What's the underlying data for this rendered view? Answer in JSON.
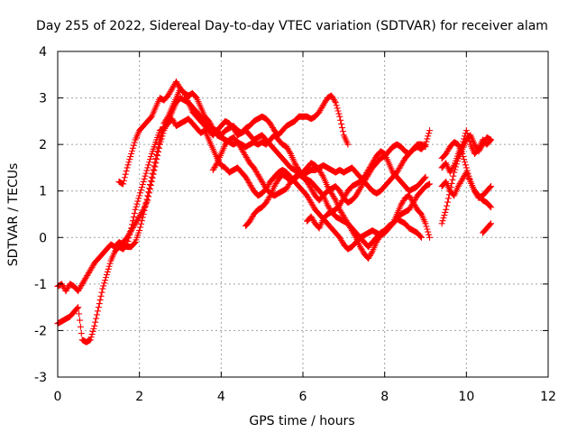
{
  "chart_data": {
    "type": "scatter",
    "title": "Day 255 of 2022, Sidereal Day-to-day VTEC variation (SDTVAR) for receiver alam",
    "xlabel": "GPS time / hours",
    "ylabel": "SDTVAR / TECUs",
    "xlim": [
      0,
      12
    ],
    "ylim": [
      -3,
      4
    ],
    "xticks": [
      "0",
      "2",
      "4",
      "6",
      "8",
      "10",
      "12"
    ],
    "yticks": [
      "-3",
      "-2",
      "-1",
      "0",
      "1",
      "2",
      "3",
      "4"
    ],
    "grid": true,
    "legend": "none",
    "marker": "plus",
    "color": "#ff0000",
    "series": [
      {
        "x": [
          0.0,
          0.1,
          0.2,
          0.3,
          0.4,
          0.5,
          0.6,
          0.7,
          0.8,
          0.9,
          1.0,
          1.1,
          1.2,
          1.3,
          1.4,
          1.5,
          1.6,
          1.7,
          1.8,
          1.9,
          2.0,
          2.1,
          2.2,
          2.3,
          2.4,
          2.5,
          2.6,
          2.7,
          2.8,
          2.9,
          3.0,
          3.1,
          3.2,
          3.3,
          3.4,
          3.5,
          3.6,
          3.7,
          3.8,
          3.9,
          4.0,
          4.1,
          4.2,
          4.3,
          4.4,
          4.5,
          4.6,
          4.7,
          4.8,
          4.9,
          5.0,
          5.1,
          5.2,
          5.3,
          5.4,
          5.5,
          5.6,
          5.7,
          5.8,
          5.9,
          6.0,
          6.1,
          6.2,
          6.3,
          6.4,
          6.5,
          6.6,
          6.7,
          6.8,
          6.9,
          7.0,
          7.1
        ],
        "y": [
          -1.05,
          -1.0,
          -1.15,
          -1.0,
          -1.05,
          -1.15,
          -1.0,
          -0.85,
          -0.7,
          -0.55,
          -0.45,
          -0.35,
          -0.25,
          -0.15,
          -0.2,
          -0.1,
          -0.15,
          -0.2,
          -0.2,
          -0.1,
          0.15,
          0.5,
          0.9,
          1.3,
          1.7,
          2.1,
          2.45,
          2.6,
          2.8,
          3.0,
          3.2,
          3.1,
          2.9,
          2.7,
          2.6,
          2.5,
          2.4,
          2.3,
          2.2,
          2.3,
          2.4,
          2.5,
          2.45,
          2.35,
          2.2,
          2.25,
          2.35,
          2.4,
          2.5,
          2.55,
          2.6,
          2.55,
          2.45,
          2.3,
          2.2,
          2.3,
          2.4,
          2.45,
          2.5,
          2.6,
          2.6,
          2.6,
          2.55,
          2.6,
          2.7,
          2.85,
          3.0,
          3.05,
          2.9,
          2.6,
          2.2,
          2.0
        ]
      },
      {
        "x": [
          1.5,
          1.6,
          1.7,
          1.8,
          1.9,
          2.0,
          2.1,
          2.2,
          2.3,
          2.4,
          2.5,
          2.6,
          2.7,
          2.8,
          2.9,
          3.0,
          3.1,
          3.2,
          3.3,
          3.4,
          3.5,
          3.6,
          3.7,
          3.8,
          3.9,
          4.0,
          4.1,
          4.2,
          4.3,
          4.4,
          4.5,
          4.6,
          4.7,
          4.8,
          4.9,
          5.0,
          5.1,
          5.2,
          5.3,
          5.4,
          5.5,
          5.6,
          5.7,
          5.8,
          5.9,
          6.0,
          6.1,
          6.2,
          6.3,
          6.4,
          6.5,
          6.6,
          6.7,
          6.8,
          6.9,
          7.0,
          7.1,
          7.2,
          7.3,
          7.4,
          7.5,
          7.6,
          7.7,
          7.8,
          7.9,
          8.0,
          8.1,
          8.2,
          8.3,
          8.4,
          8.5,
          8.6,
          8.7,
          8.8,
          8.9,
          9.0,
          9.1
        ],
        "y": [
          1.2,
          1.15,
          1.5,
          1.8,
          2.1,
          2.3,
          2.4,
          2.5,
          2.6,
          2.8,
          3.0,
          2.95,
          3.05,
          3.2,
          3.35,
          3.2,
          3.1,
          3.05,
          3.1,
          3.0,
          2.8,
          2.6,
          2.5,
          2.35,
          2.2,
          2.15,
          2.1,
          2.05,
          2.0,
          2.05,
          2.0,
          1.95,
          2.0,
          2.05,
          2.0,
          2.05,
          2.0,
          2.1,
          2.2,
          2.1,
          2.0,
          1.95,
          1.8,
          1.6,
          1.45,
          1.35,
          1.4,
          1.45,
          1.45,
          1.5,
          1.55,
          1.5,
          1.45,
          1.4,
          1.45,
          1.4,
          1.45,
          1.5,
          1.4,
          1.3,
          1.2,
          1.1,
          1.0,
          0.95,
          1.0,
          1.1,
          1.2,
          1.3,
          1.4,
          1.55,
          1.7,
          1.8,
          1.9,
          1.95,
          1.9,
          2.0,
          2.3
        ]
      },
      {
        "x": [
          0.0,
          0.1,
          0.2,
          0.3,
          0.4,
          0.5,
          0.6,
          0.7,
          0.8,
          0.9,
          1.0,
          1.1,
          1.2,
          1.3,
          1.4,
          1.5,
          1.6,
          1.7,
          1.8,
          1.9,
          2.0,
          2.1,
          2.2,
          2.3,
          2.4,
          2.5,
          2.6,
          2.7,
          2.8,
          2.9,
          3.0,
          3.1,
          3.2,
          3.3,
          3.4,
          3.5,
          3.6,
          3.7,
          3.8,
          3.9,
          4.0,
          4.1,
          4.2,
          4.3,
          4.4,
          4.5,
          4.6,
          4.7,
          4.8,
          4.9,
          5.0,
          5.1,
          5.2,
          5.3,
          5.4,
          5.5,
          5.6,
          5.7,
          5.8,
          5.9,
          6.0,
          6.1,
          6.2,
          6.3,
          6.4,
          6.5,
          6.6,
          6.7,
          6.8,
          6.9,
          7.0,
          7.1,
          7.2,
          7.3,
          7.4,
          7.5,
          7.6,
          7.7,
          7.8,
          7.9,
          8.0,
          8.1,
          8.2,
          8.3,
          8.4,
          8.5,
          8.6,
          8.7,
          8.8,
          8.9,
          9.0,
          9.1
        ],
        "y": [
          -1.85,
          -1.8,
          -1.75,
          -1.7,
          -1.6,
          -1.5,
          -2.2,
          -2.25,
          -2.2,
          -1.9,
          -1.5,
          -1.1,
          -0.8,
          -0.5,
          -0.3,
          -0.2,
          -0.25,
          -0.15,
          0.2,
          0.6,
          0.9,
          1.2,
          1.5,
          1.8,
          2.05,
          2.3,
          2.35,
          2.45,
          2.55,
          2.4,
          2.45,
          2.5,
          2.55,
          2.45,
          2.35,
          2.25,
          2.3,
          2.1,
          1.9,
          1.7,
          1.55,
          1.5,
          1.4,
          1.45,
          1.5,
          1.4,
          1.3,
          1.15,
          1.0,
          0.9,
          0.95,
          1.05,
          1.2,
          1.3,
          1.4,
          1.45,
          1.4,
          1.3,
          1.2,
          1.1,
          1.0,
          0.9,
          0.75,
          0.6,
          0.5,
          0.4,
          0.3,
          0.2,
          0.1,
          0.0,
          -0.15,
          -0.25,
          -0.2,
          -0.1,
          0.0,
          0.05,
          0.1,
          0.15,
          0.1,
          0.05,
          0.1,
          0.2,
          0.3,
          0.4,
          0.5,
          0.55,
          0.6,
          0.75,
          0.9,
          1.0,
          1.1,
          1.15
        ]
      },
      {
        "x": [
          1.5,
          1.6,
          1.7,
          1.8,
          1.9,
          2.0,
          2.1,
          2.2,
          2.3,
          2.4,
          2.5,
          2.6,
          2.7,
          2.8,
          2.9,
          3.0,
          3.1,
          3.2,
          3.3,
          3.4,
          3.5,
          3.6,
          3.7,
          3.8,
          3.9,
          4.0,
          4.1,
          4.2,
          4.3,
          4.4,
          4.5,
          4.6,
          4.7,
          4.8,
          4.9,
          5.0,
          5.1,
          5.2,
          5.3,
          5.4,
          5.5,
          5.6,
          5.7,
          5.8,
          5.9,
          6.0,
          6.1,
          6.2,
          6.3,
          6.4,
          6.5,
          6.6,
          6.7,
          6.8,
          6.9,
          7.0,
          7.1,
          7.2,
          7.3,
          7.4,
          7.5,
          7.6,
          7.7,
          7.8,
          7.9,
          8.0,
          8.1,
          8.2,
          8.3,
          8.4,
          8.5,
          8.6,
          8.7,
          8.8,
          8.9
        ],
        "y": [
          -0.2,
          -0.1,
          0.0,
          0.15,
          0.3,
          0.45,
          0.6,
          0.8,
          1.2,
          1.6,
          2.0,
          2.3,
          2.5,
          2.7,
          2.9,
          3.0,
          2.95,
          2.9,
          2.8,
          2.7,
          2.6,
          2.5,
          2.4,
          2.3,
          2.3,
          2.2,
          2.3,
          2.35,
          2.4,
          2.3,
          2.25,
          2.3,
          2.2,
          2.1,
          2.15,
          2.2,
          2.1,
          2.0,
          1.9,
          1.8,
          1.7,
          1.6,
          1.5,
          1.45,
          1.4,
          1.3,
          1.25,
          1.2,
          1.1,
          1.0,
          0.9,
          0.7,
          0.55,
          0.45,
          0.4,
          0.35,
          0.3,
          0.2,
          0.1,
          0.0,
          -0.1,
          -0.2,
          -0.1,
          0.0,
          0.1,
          0.15,
          0.25,
          0.3,
          0.4,
          0.35,
          0.3,
          0.2,
          0.15,
          0.1,
          0.0
        ]
      },
      {
        "x": [
          3.8,
          3.9,
          4.0,
          4.1,
          4.2,
          4.3,
          4.4,
          4.5,
          4.6,
          4.7,
          4.8,
          4.9,
          5.0,
          5.1,
          5.2,
          5.3,
          5.4,
          5.5,
          5.6,
          5.7,
          5.8,
          5.9,
          6.0,
          6.1,
          6.2,
          6.3,
          6.4,
          6.5,
          6.6,
          6.7,
          6.8,
          6.9,
          7.0,
          7.1,
          7.2,
          7.3,
          7.4,
          7.5,
          7.6,
          7.7,
          7.8,
          7.9,
          8.0,
          8.1,
          8.2,
          8.3,
          8.4,
          8.5,
          8.6,
          8.7,
          8.8,
          8.9,
          9.0
        ],
        "y": [
          1.45,
          1.6,
          1.8,
          2.0,
          2.1,
          2.15,
          2.05,
          1.9,
          1.75,
          1.6,
          1.5,
          1.35,
          1.2,
          1.05,
          0.95,
          0.9,
          0.95,
          1.0,
          1.05,
          1.2,
          1.3,
          1.35,
          1.3,
          1.2,
          1.05,
          0.9,
          0.8,
          0.9,
          1.0,
          1.05,
          1.1,
          1.0,
          0.85,
          0.75,
          0.8,
          0.9,
          1.05,
          1.2,
          1.35,
          1.5,
          1.6,
          1.7,
          1.75,
          1.85,
          1.95,
          2.0,
          1.95,
          1.85,
          1.8,
          1.9,
          2.0,
          2.0,
          1.95
        ]
      },
      {
        "x": [
          4.6,
          4.7,
          4.8,
          4.9,
          5.0,
          5.1,
          5.2,
          5.3,
          5.4,
          5.5,
          5.6,
          5.7,
          5.8,
          5.9,
          6.0,
          6.1,
          6.2,
          6.3,
          6.4,
          6.5,
          6.6,
          6.7,
          6.8,
          6.9,
          7.0,
          7.1,
          7.2,
          7.3,
          7.4,
          7.5,
          7.6,
          7.7,
          7.8,
          7.9,
          8.0,
          8.1,
          8.2,
          8.3,
          8.4,
          8.5,
          8.6,
          8.7,
          8.8,
          8.9,
          9.0,
          9.1
        ],
        "y": [
          0.25,
          0.35,
          0.5,
          0.6,
          0.65,
          0.75,
          0.9,
          1.1,
          1.25,
          1.35,
          1.3,
          1.2,
          1.25,
          1.35,
          1.4,
          1.5,
          1.6,
          1.55,
          1.45,
          1.3,
          1.1,
          0.95,
          0.8,
          0.6,
          0.45,
          0.3,
          0.15,
          0.0,
          -0.2,
          -0.35,
          -0.45,
          -0.3,
          -0.1,
          0.05,
          0.1,
          0.2,
          0.3,
          0.5,
          0.7,
          0.85,
          0.9,
          0.75,
          0.6,
          0.5,
          0.3,
          0.0
        ]
      },
      {
        "x": [
          6.1,
          6.2,
          6.3,
          6.4,
          6.5,
          6.6,
          6.7,
          6.8,
          6.9,
          7.0,
          7.1,
          7.2,
          7.3,
          7.4,
          7.5,
          7.6,
          7.7,
          7.8,
          7.9,
          8.0,
          8.1,
          8.2,
          8.3,
          8.4,
          8.5,
          8.6,
          8.7,
          8.8,
          8.9,
          9.0
        ],
        "y": [
          0.35,
          0.45,
          0.3,
          0.2,
          0.4,
          0.5,
          0.55,
          0.6,
          0.7,
          0.85,
          1.0,
          1.1,
          1.15,
          1.2,
          1.3,
          1.45,
          1.6,
          1.75,
          1.85,
          1.8,
          1.6,
          1.4,
          1.3,
          1.2,
          1.1,
          1.0,
          1.05,
          1.1,
          1.2,
          1.3
        ]
      },
      {
        "x": [
          9.4,
          9.5,
          9.6,
          9.7,
          9.8,
          9.9,
          10.0,
          10.1,
          10.2,
          10.3,
          10.4,
          10.5,
          10.6
        ],
        "y": [
          0.3,
          0.6,
          1.0,
          1.4,
          1.7,
          1.9,
          2.1,
          2.2,
          2.0,
          1.85,
          2.0,
          2.15,
          2.1
        ]
      },
      {
        "x": [
          9.4,
          9.5,
          9.6,
          9.7,
          9.8,
          9.9,
          10.0,
          10.1,
          10.2,
          10.3,
          10.4,
          10.5,
          10.6
        ],
        "y": [
          1.5,
          1.6,
          1.4,
          1.55,
          1.8,
          2.0,
          2.3,
          2.0,
          1.8,
          1.9,
          2.1,
          2.0,
          2.1
        ]
      },
      {
        "x": [
          9.4,
          9.5,
          9.6,
          9.7,
          9.8,
          9.9,
          10.0,
          10.1,
          10.2,
          10.3,
          10.4,
          10.5,
          10.6
        ],
        "y": [
          1.7,
          1.8,
          1.95,
          2.05,
          2.0,
          1.8,
          1.5,
          1.2,
          1.0,
          0.9,
          0.8,
          0.75,
          0.65
        ]
      },
      {
        "x": [
          9.4,
          9.5,
          9.6,
          9.7,
          9.8,
          9.9,
          10.0,
          10.1,
          10.2,
          10.3,
          10.4,
          10.5,
          10.6
        ],
        "y": [
          1.1,
          1.2,
          1.0,
          0.9,
          1.1,
          1.25,
          1.4,
          1.2,
          1.0,
          0.85,
          0.9,
          1.0,
          1.1
        ]
      },
      {
        "x": [
          10.4,
          10.5,
          10.6
        ],
        "y": [
          0.1,
          0.2,
          0.3
        ]
      }
    ]
  }
}
